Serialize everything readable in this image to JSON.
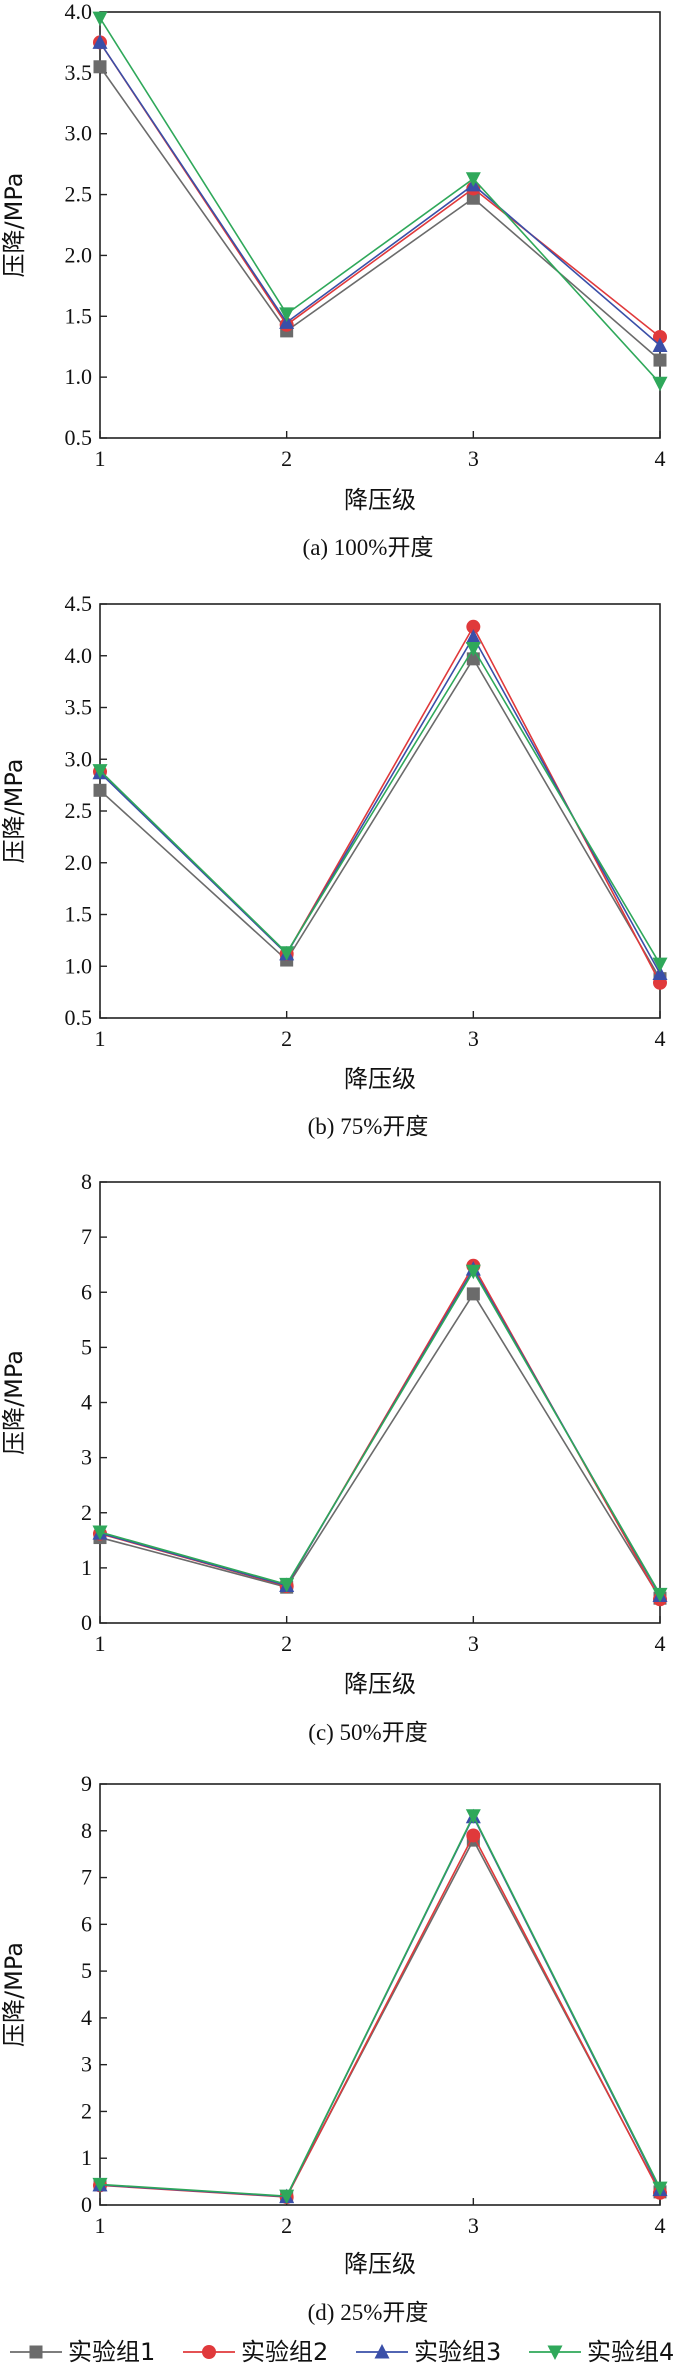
{
  "chart_data": [
    {
      "type": "line",
      "caption": "(a) 100%开度",
      "xlabel": "降压级",
      "ylabel": "压降/MPa",
      "x": [
        1,
        2,
        3,
        4
      ],
      "xticks": [
        "1",
        "2",
        "3",
        "4"
      ],
      "ylim": [
        0.5,
        4.0
      ],
      "yticks": [
        "0.5",
        "1.0",
        "1.5",
        "2.0",
        "2.5",
        "3.0",
        "3.5",
        "4.0"
      ],
      "series": [
        {
          "name": "实验组1",
          "values": [
            3.55,
            1.38,
            2.47,
            1.14
          ]
        },
        {
          "name": "实验组2",
          "values": [
            3.75,
            1.43,
            2.55,
            1.33
          ]
        },
        {
          "name": "实验组3",
          "values": [
            3.75,
            1.45,
            2.58,
            1.26
          ]
        },
        {
          "name": "实验组4",
          "values": [
            3.95,
            1.52,
            2.63,
            0.95
          ]
        }
      ]
    },
    {
      "type": "line",
      "caption": "(b) 75%开度",
      "xlabel": "降压级",
      "ylabel": "压降/MPa",
      "x": [
        1,
        2,
        3,
        4
      ],
      "xticks": [
        "1",
        "2",
        "3",
        "4"
      ],
      "ylim": [
        0.5,
        4.5
      ],
      "yticks": [
        "0.5",
        "1.0",
        "1.5",
        "2.0",
        "2.5",
        "3.0",
        "3.5",
        "4.0",
        "4.5"
      ],
      "series": [
        {
          "name": "实验组1",
          "values": [
            2.7,
            1.06,
            3.97,
            0.88
          ]
        },
        {
          "name": "实验组2",
          "values": [
            2.88,
            1.12,
            4.28,
            0.84
          ]
        },
        {
          "name": "实验组3",
          "values": [
            2.87,
            1.12,
            4.18,
            0.93
          ]
        },
        {
          "name": "实验组4",
          "values": [
            2.89,
            1.13,
            4.07,
            1.02
          ]
        }
      ]
    },
    {
      "type": "line",
      "caption": "(c) 50%开度",
      "xlabel": "降压级",
      "ylabel": "压降/MPa",
      "x": [
        1,
        2,
        3,
        4
      ],
      "xticks": [
        "1",
        "2",
        "3",
        "4"
      ],
      "ylim": [
        0,
        8
      ],
      "yticks": [
        "0",
        "1",
        "2",
        "3",
        "4",
        "5",
        "6",
        "7",
        "8"
      ],
      "series": [
        {
          "name": "实验组1",
          "values": [
            1.55,
            0.65,
            5.97,
            0.45
          ]
        },
        {
          "name": "实验组2",
          "values": [
            1.62,
            0.67,
            6.48,
            0.43
          ]
        },
        {
          "name": "实验组3",
          "values": [
            1.63,
            0.68,
            6.42,
            0.5
          ]
        },
        {
          "name": "实验组4",
          "values": [
            1.65,
            0.7,
            6.38,
            0.52
          ]
        }
      ]
    },
    {
      "type": "line",
      "caption": "(d) 25%开度",
      "xlabel": "降压级",
      "ylabel": "压降/MPa",
      "x": [
        1,
        2,
        3,
        4
      ],
      "xticks": [
        "1",
        "2",
        "3",
        "4"
      ],
      "ylim": [
        0,
        9
      ],
      "yticks": [
        "0",
        "1",
        "2",
        "3",
        "4",
        "5",
        "6",
        "7",
        "8",
        "9"
      ],
      "series": [
        {
          "name": "实验组1",
          "values": [
            0.43,
            0.18,
            7.8,
            0.28
          ]
        },
        {
          "name": "实验组2",
          "values": [
            0.42,
            0.17,
            7.9,
            0.26
          ]
        },
        {
          "name": "实验组3",
          "values": [
            0.43,
            0.18,
            8.3,
            0.33
          ]
        },
        {
          "name": "实验组4",
          "values": [
            0.44,
            0.19,
            8.32,
            0.36
          ]
        }
      ]
    }
  ],
  "legend": {
    "position": "bottom",
    "entries": [
      "实验组1",
      "实验组2",
      "实验组3",
      "实验组4"
    ]
  },
  "style": {
    "series_colors": [
      "#6b6b6b",
      "#e0393b",
      "#3a4fa8",
      "#2fa85a"
    ],
    "series_markers": [
      "square",
      "circle",
      "triangle-up",
      "triangle-down"
    ],
    "axis_color": "#222222"
  }
}
